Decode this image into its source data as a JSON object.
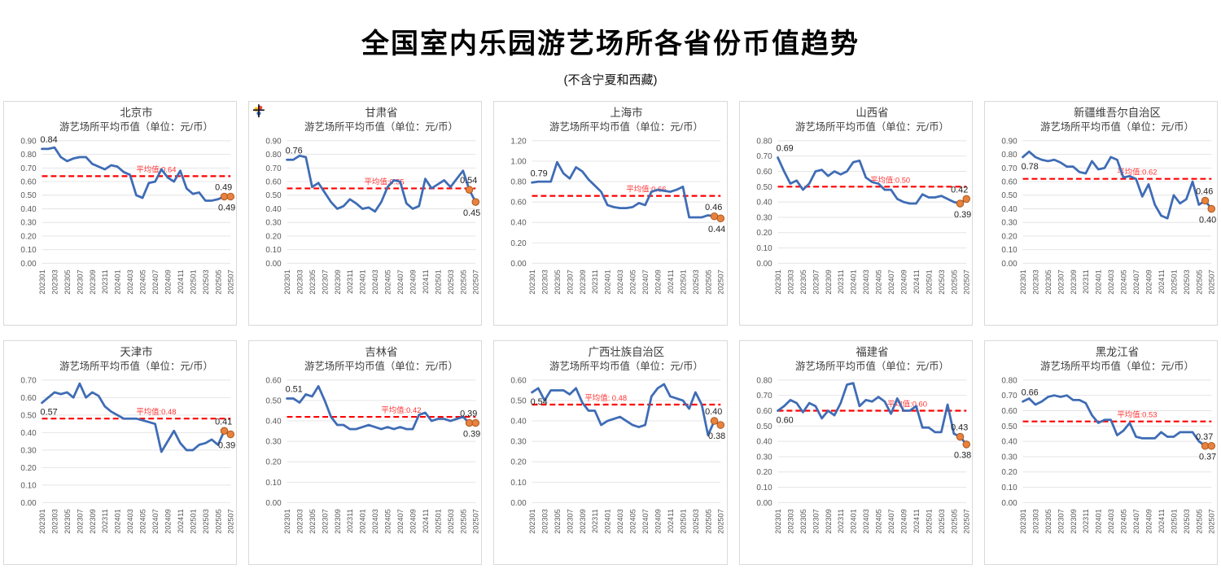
{
  "page": {
    "title": "全国室内乐园游艺场所各省份币值趋势",
    "subtitle": "(不含宁夏和西藏)"
  },
  "colors": {
    "line": "#3f6cb5",
    "mean_line": "#ff0000",
    "mean_text": "#ff3333",
    "marker": "#e8823e",
    "marker_stroke": "#a9581f",
    "grid": "#e4e4e4",
    "axis_text": "#585858",
    "title_text": "#3c3c3c",
    "value_text": "#1f1f1f",
    "card_border": "#d9d9d9",
    "background": "#ffffff"
  },
  "x_tick_labels": [
    "202301",
    "202303",
    "202305",
    "202307",
    "202309",
    "202311",
    "202401",
    "202403",
    "202405",
    "202407",
    "202409",
    "202411",
    "202501",
    "202503",
    "202505",
    "202507"
  ],
  "chart_data": [
    {
      "id": "beijing",
      "type": "line",
      "title": "北京市",
      "subtitle": "游艺场所平均币值（单位：元/币）",
      "ylim": [
        0,
        0.9
      ],
      "ystep": 0.1,
      "mean": 0.64,
      "mean_label": "平均值:0.64",
      "mean_label_x": 0.5,
      "first_label": "0.84",
      "first_label_pos": "above",
      "end_label_above": "0.49",
      "end_label_below": "0.49",
      "values": [
        0.84,
        0.84,
        0.85,
        0.78,
        0.75,
        0.77,
        0.78,
        0.78,
        0.73,
        0.71,
        0.69,
        0.72,
        0.71,
        0.67,
        0.65,
        0.5,
        0.48,
        0.59,
        0.6,
        0.69,
        0.63,
        0.6,
        0.68,
        0.55,
        0.51,
        0.52,
        0.46,
        0.46,
        0.47,
        0.49,
        0.49
      ]
    },
    {
      "id": "gansu",
      "type": "line",
      "title": "甘肃省",
      "subtitle": "游艺场所平均币值（单位：元/币）",
      "ylim": [
        0,
        0.9
      ],
      "ystep": 0.1,
      "mean": 0.55,
      "mean_label": "平均值:0.55",
      "mean_label_x": 0.41,
      "first_label": "0.76",
      "first_label_pos": "above",
      "end_label_above": "0.54",
      "end_label_below": "0.45",
      "artifact": "multicolor-cursor",
      "values": [
        0.76,
        0.76,
        0.79,
        0.78,
        0.56,
        0.59,
        0.52,
        0.45,
        0.4,
        0.42,
        0.47,
        0.44,
        0.4,
        0.41,
        0.38,
        0.45,
        0.56,
        0.61,
        0.6,
        0.44,
        0.4,
        0.42,
        0.62,
        0.55,
        0.58,
        0.61,
        0.56,
        0.62,
        0.68,
        0.54,
        0.45
      ]
    },
    {
      "id": "shanghai",
      "type": "line",
      "title": "上海市",
      "subtitle": "游艺场所平均币值（单位：元/币）",
      "ylim": [
        0,
        1.2
      ],
      "ystep": 0.2,
      "mean": 0.66,
      "mean_label": "平均值:0.66",
      "mean_label_x": 0.5,
      "first_label": "0.79",
      "first_label_pos": "above",
      "end_label_above": "0.46",
      "end_label_below": "0.44",
      "values": [
        0.79,
        0.8,
        0.8,
        0.8,
        0.99,
        0.88,
        0.83,
        0.94,
        0.9,
        0.82,
        0.76,
        0.7,
        0.57,
        0.55,
        0.54,
        0.54,
        0.55,
        0.59,
        0.57,
        0.7,
        0.72,
        0.71,
        0.7,
        0.72,
        0.75,
        0.45,
        0.45,
        0.45,
        0.47,
        0.46,
        0.44
      ]
    },
    {
      "id": "shanxi",
      "type": "line",
      "title": "山西省",
      "subtitle": "游艺场所平均币值（单位：元/币）",
      "ylim": [
        0,
        0.8
      ],
      "ystep": 0.1,
      "mean": 0.5,
      "mean_label": "平均值:0.50",
      "mean_label_x": 0.49,
      "first_label": "0.69",
      "first_label_pos": "above",
      "end_label_above": "0.42",
      "end_label_below": "0.39",
      "values": [
        0.69,
        0.6,
        0.52,
        0.54,
        0.48,
        0.52,
        0.6,
        0.61,
        0.57,
        0.6,
        0.58,
        0.6,
        0.66,
        0.67,
        0.56,
        0.53,
        0.52,
        0.48,
        0.48,
        0.42,
        0.4,
        0.39,
        0.39,
        0.45,
        0.43,
        0.43,
        0.44,
        0.42,
        0.4,
        0.39,
        0.42
      ]
    },
    {
      "id": "xinjiang",
      "type": "line",
      "title": "新疆维吾尔自治区",
      "subtitle": "游艺场所平均币值（单位：元/币）",
      "ylim": [
        0,
        0.9
      ],
      "ystep": 0.1,
      "mean": 0.62,
      "mean_label": "平均值:0.62",
      "mean_label_x": 0.5,
      "first_label": "0.78",
      "first_label_pos": "below",
      "end_label_above": "0.46",
      "end_label_below": "0.40",
      "values": [
        0.78,
        0.82,
        0.78,
        0.76,
        0.75,
        0.76,
        0.74,
        0.71,
        0.71,
        0.67,
        0.66,
        0.75,
        0.69,
        0.7,
        0.78,
        0.76,
        0.63,
        0.64,
        0.62,
        0.49,
        0.58,
        0.43,
        0.35,
        0.33,
        0.5,
        0.44,
        0.47,
        0.6,
        0.43,
        0.46,
        0.4
      ]
    },
    {
      "id": "tianjin",
      "type": "line",
      "title": "天津市",
      "subtitle": "游艺场所平均币值（单位：元/币）",
      "ylim": [
        0,
        0.7
      ],
      "ystep": 0.1,
      "mean": 0.48,
      "mean_label": "平均值:0.48",
      "mean_label_x": 0.5,
      "first_label": "0.57",
      "first_label_pos": "below",
      "end_label_above": "0.41",
      "end_label_below": "0.39",
      "values": [
        0.57,
        0.6,
        0.63,
        0.62,
        0.63,
        0.6,
        0.68,
        0.6,
        0.63,
        0.61,
        0.55,
        0.52,
        0.5,
        0.48,
        0.48,
        0.48,
        0.47,
        0.46,
        0.45,
        0.29,
        0.35,
        0.41,
        0.34,
        0.3,
        0.3,
        0.33,
        0.34,
        0.36,
        0.33,
        0.41,
        0.39
      ]
    },
    {
      "id": "jilin",
      "type": "line",
      "title": "吉林省",
      "subtitle": "游艺场所平均币值（单位：元/币）",
      "ylim": [
        0,
        0.6
      ],
      "ystep": 0.1,
      "mean": 0.42,
      "mean_label": "平均值:0.42",
      "mean_label_x": 0.5,
      "first_label": "0.51",
      "first_label_pos": "above",
      "end_label_above": "0.39",
      "end_label_below": "0.39",
      "values": [
        0.51,
        0.51,
        0.49,
        0.53,
        0.52,
        0.57,
        0.5,
        0.42,
        0.38,
        0.38,
        0.36,
        0.36,
        0.37,
        0.38,
        0.37,
        0.36,
        0.37,
        0.36,
        0.37,
        0.36,
        0.36,
        0.43,
        0.44,
        0.4,
        0.41,
        0.41,
        0.4,
        0.41,
        0.42,
        0.39,
        0.39
      ]
    },
    {
      "id": "guangxi",
      "type": "line",
      "title": "广西壮族自治区",
      "subtitle": "游艺场所平均币值（单位：元/币）",
      "ylim": [
        0,
        0.6
      ],
      "ystep": 0.1,
      "mean": 0.48,
      "mean_label": "平均值: 0.48",
      "mean_label_x": 0.28,
      "first_label": "0.54",
      "first_label_pos": "below",
      "end_label_above": "0.40",
      "end_label_below": "0.38",
      "values": [
        0.54,
        0.56,
        0.5,
        0.55,
        0.55,
        0.55,
        0.53,
        0.56,
        0.49,
        0.45,
        0.45,
        0.38,
        0.4,
        0.41,
        0.42,
        0.4,
        0.38,
        0.37,
        0.38,
        0.52,
        0.56,
        0.58,
        0.52,
        0.51,
        0.5,
        0.46,
        0.54,
        0.48,
        0.33,
        0.4,
        0.38
      ]
    },
    {
      "id": "fujian",
      "type": "line",
      "title": "福建省",
      "subtitle": "游艺场所平均币值（单位：元/币）",
      "ylim": [
        0,
        0.8
      ],
      "ystep": 0.1,
      "mean": 0.6,
      "mean_label": "平均值:0.60",
      "mean_label_x": 0.58,
      "first_label": "0.60",
      "first_label_pos": "below",
      "end_label_above": "0.43",
      "end_label_below": "0.38",
      "values": [
        0.6,
        0.63,
        0.67,
        0.65,
        0.59,
        0.65,
        0.63,
        0.55,
        0.6,
        0.57,
        0.65,
        0.77,
        0.78,
        0.63,
        0.67,
        0.66,
        0.69,
        0.66,
        0.58,
        0.68,
        0.6,
        0.6,
        0.63,
        0.49,
        0.49,
        0.46,
        0.46,
        0.64,
        0.45,
        0.43,
        0.38
      ]
    },
    {
      "id": "heilongjiang",
      "type": "line",
      "title": "黑龙江省",
      "subtitle": "游艺场所平均币值（单位：元/币）",
      "ylim": [
        0,
        0.8
      ],
      "ystep": 0.1,
      "mean": 0.53,
      "mean_label": "平均值:0.53",
      "mean_label_x": 0.5,
      "first_label": "0.66",
      "first_label_pos": "above",
      "end_label_above": "0.37",
      "end_label_below": "0.37",
      "values": [
        0.66,
        0.68,
        0.64,
        0.66,
        0.69,
        0.7,
        0.69,
        0.7,
        0.67,
        0.67,
        0.65,
        0.57,
        0.52,
        0.54,
        0.54,
        0.44,
        0.47,
        0.52,
        0.43,
        0.42,
        0.42,
        0.42,
        0.46,
        0.43,
        0.43,
        0.46,
        0.46,
        0.46,
        0.4,
        0.37,
        0.37
      ]
    }
  ]
}
